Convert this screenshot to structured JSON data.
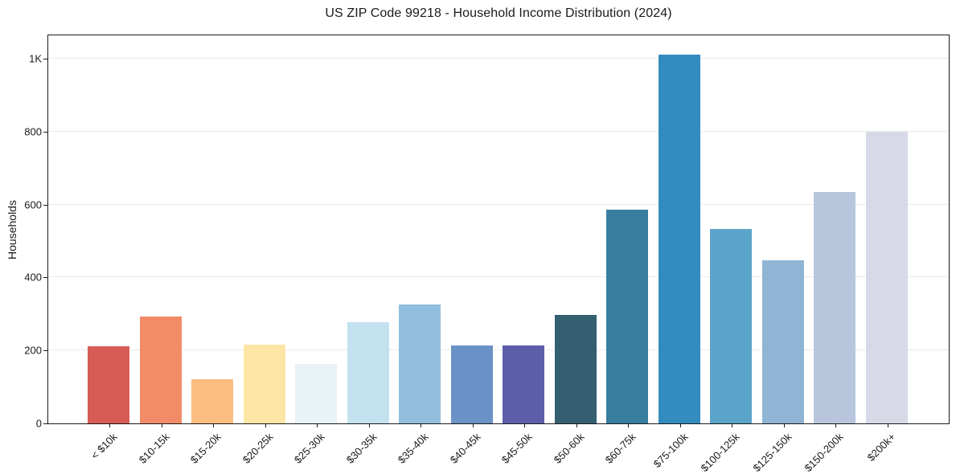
{
  "chart_data": {
    "type": "bar",
    "title": "US ZIP Code 99218 - Household Income Distribution (2024)",
    "xlabel": "",
    "ylabel": "Households",
    "categories": [
      "< $10k",
      "$10-15k",
      "$15-20k",
      "$20-25k",
      "$25-30k",
      "$30-35k",
      "$35-40k",
      "$40-45k",
      "$45-50k",
      "$50-60k",
      "$60-75k",
      "$75-100k",
      "$100-125k",
      "$125-150k",
      "$150-200k",
      "$200k+"
    ],
    "values": [
      211,
      292,
      121,
      215,
      163,
      277,
      327,
      213,
      213,
      297,
      585,
      1011,
      534,
      448,
      634,
      800
    ],
    "bar_colors": [
      "#d65c55",
      "#f28b67",
      "#fbbd80",
      "#fde5a6",
      "#e8f2f7",
      "#c3e1ee",
      "#92bedd",
      "#6a92c6",
      "#5d5ea9",
      "#345f70",
      "#377da0",
      "#338cc0",
      "#5ba4c9",
      "#90b5d4",
      "#b7c6dd",
      "#d7dae6"
    ],
    "ylim": [
      0,
      1064
    ],
    "y_ticks": {
      "values": [
        0,
        200,
        400,
        600,
        800,
        1000
      ],
      "labels": [
        "0",
        "200",
        "400",
        "600",
        "800",
        "1K"
      ]
    },
    "grid": "horizontal",
    "legend": "none",
    "colors": {
      "background": "#ffffff",
      "gridline": "#eaeaea",
      "spine": "#1a1a1a",
      "text": "#1a1a1a"
    }
  }
}
